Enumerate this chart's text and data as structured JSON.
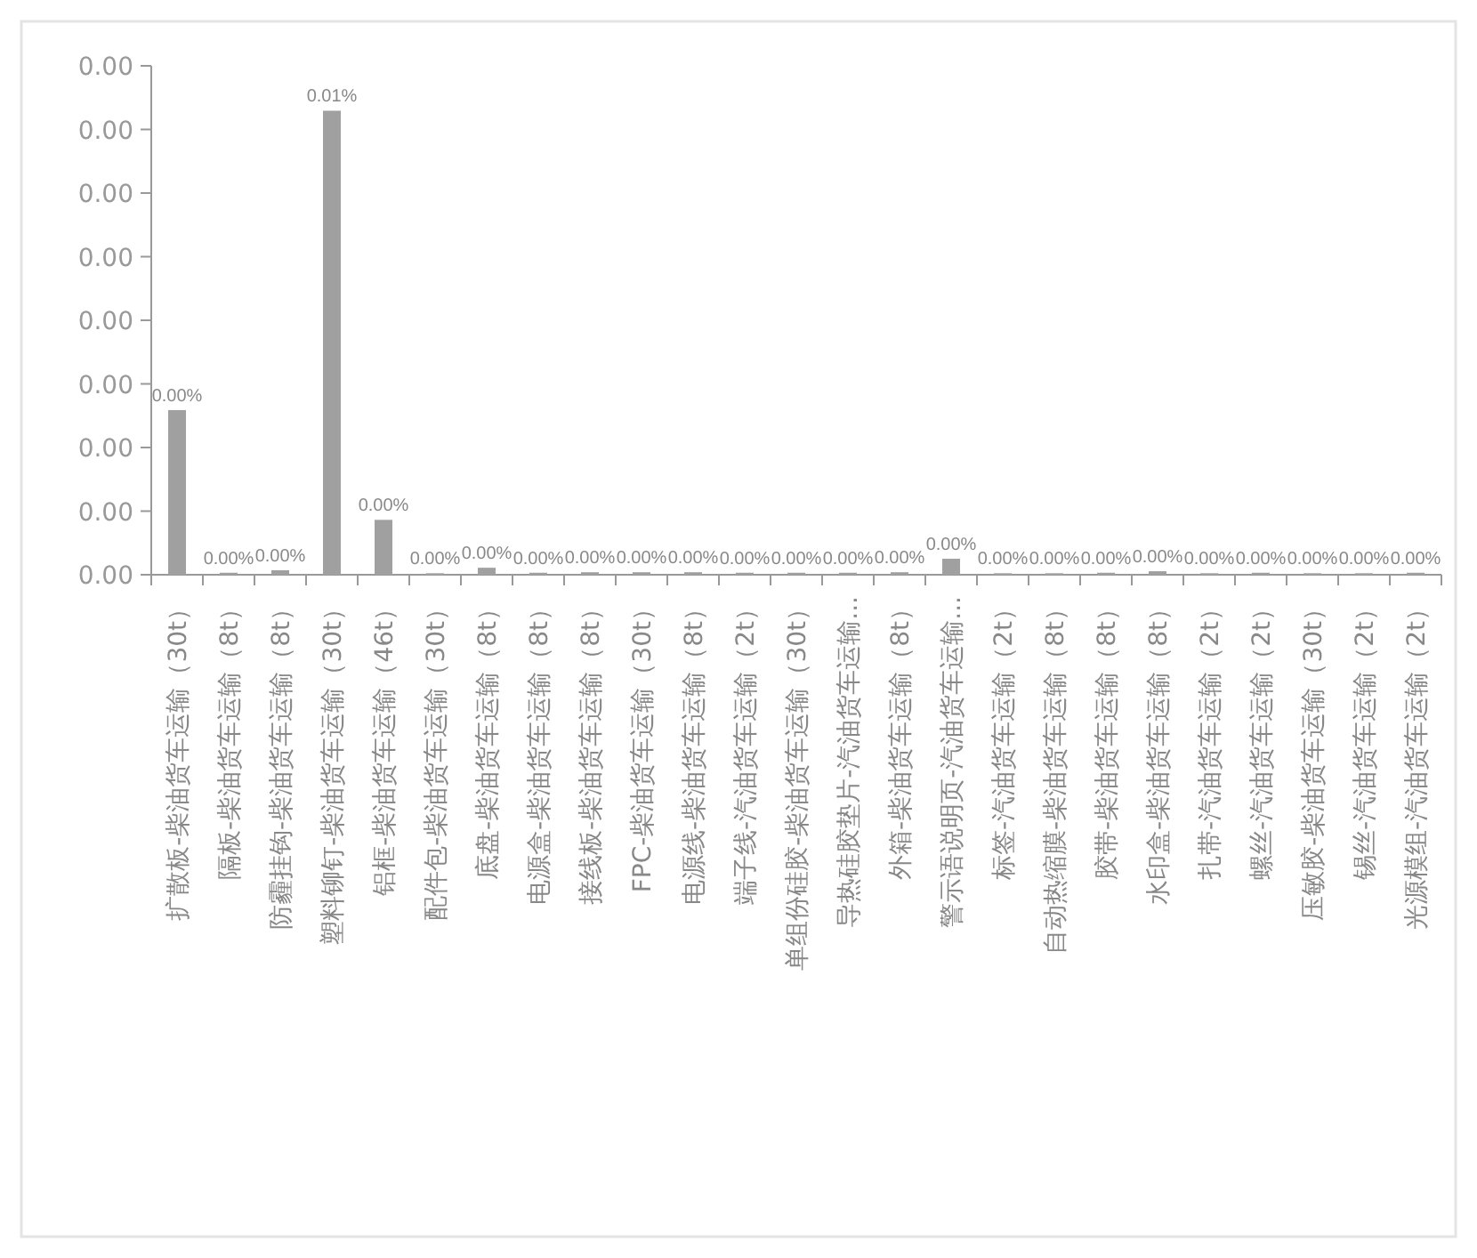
{
  "chart_data": {
    "type": "bar",
    "color": "#a0a0a0",
    "categories": [
      "扩散板-柴油货车运输（30t）",
      "隔板-柴油货车运输（8t）",
      "防霾挂钩-柴油货车运输（8t）",
      "塑料铆钉-柴油货车运输（30t）",
      "铝框-柴油货车运输（46t）",
      "配件包-柴油货车运输（30t）",
      "底盘-柴油货车运输（8t）",
      "电源盒-柴油货车运输（8t）",
      "接线板-柴油货车运输（8t）",
      "FPC-柴油货车运输（30t）",
      "电源线-柴油货车运输（8t）",
      "端子线-汽油货车运输（2t）",
      "单组份硅胶-柴油货车运输（30t）",
      "导热硅胶垫片-汽油货车运输...",
      "外箱-柴油货车运输（8t）",
      "警示语说明页-汽油货车运输...",
      "标签-汽油货车运输（2t）",
      "自动热缩膜-柴油货车运输（8t）",
      "胶带-柴油货车运输（8t）",
      "水印盒-柴油货车运输（8t）",
      "扎带-汽油货车运输（2t）",
      "螺丝-汽油货车运输（2t）",
      "压敏胶-柴油货车运输（30t）",
      "锡丝-汽油货车运输（2t）",
      "光源模组-汽油货车运输（2t）"
    ],
    "values": [
      3.3e-05,
      4e-07,
      9e-07,
      9.3e-05,
      1.1e-05,
      3e-07,
      1.4e-06,
      4e-07,
      5e-07,
      5e-07,
      5e-07,
      4e-07,
      4e-07,
      4e-07,
      5e-07,
      3.2e-06,
      3e-07,
      3e-07,
      4e-07,
      7e-07,
      3e-07,
      4e-07,
      3e-07,
      3e-07,
      4e-07
    ],
    "value_labels": [
      "0.00%",
      "0.00%",
      "0.00%",
      "0.01%",
      "0.00%",
      "0.00%",
      "0.00%",
      "0.00%",
      "0.00%",
      "0.00%",
      "0.00%",
      "0.00%",
      "0.00%",
      "0.00%",
      "0.00%",
      "0.00%",
      "0.00%",
      "0.00%",
      "0.00%",
      "0.00%",
      "0.00%",
      "0.00%",
      "0.00%",
      "0.00%",
      "0.00%"
    ],
    "ylim": [
      0,
      0.000102
    ],
    "annotations": [
      "0.00",
      "0.00",
      "0.00",
      "0.00",
      "0.00",
      "0.00",
      "0.00",
      "0.00",
      "0.00"
    ]
  }
}
